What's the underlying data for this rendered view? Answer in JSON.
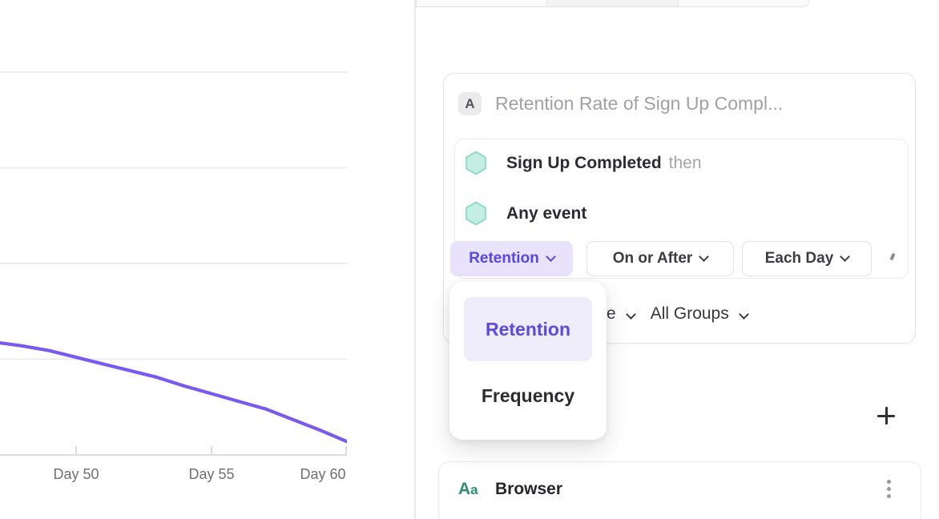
{
  "chart_data": {
    "type": "line",
    "title": "",
    "xlabel": "",
    "ylabel": "",
    "x_ticks": [
      {
        "day": 50,
        "label": "Day 50"
      },
      {
        "day": 55,
        "label": "Day 55"
      },
      {
        "day": 60,
        "label": "Day 60"
      }
    ],
    "xlim": [
      47.2,
      60
    ],
    "ylim": [
      0,
      47.5
    ],
    "gridlines_pct": [
      10,
      20,
      30,
      40
    ],
    "grid": "horizontal-only, unlabeled",
    "legend": "none",
    "series": [
      {
        "name": "retention",
        "color": "#7a59f0",
        "points": [
          [
            47.2,
            11.7
          ],
          [
            48,
            11.4
          ],
          [
            49,
            10.9
          ],
          [
            50,
            10.2
          ],
          [
            51,
            9.5
          ],
          [
            52,
            8.8
          ],
          [
            53,
            8.1
          ],
          [
            54,
            7.2
          ],
          [
            55,
            6.4
          ],
          [
            56,
            5.6
          ],
          [
            57,
            4.8
          ],
          [
            58,
            3.7
          ],
          [
            59,
            2.6
          ],
          [
            60,
            1.4
          ]
        ]
      }
    ]
  },
  "query_card": {
    "badge": "A",
    "title_placeholder": "Retention Rate of Sign Up Compl...",
    "events": [
      {
        "name": "Sign Up Completed",
        "suffix": "then"
      },
      {
        "name": "Any event",
        "suffix": ""
      }
    ],
    "measure_dropdown": "Retention",
    "window_dropdown": "On or After",
    "interval_dropdown": "Each Day",
    "footer": {
      "obscured_fragment": "e",
      "groups_dropdown": "All Groups"
    }
  },
  "dropdown_menu": {
    "items": [
      {
        "label": "Retention",
        "selected": true
      },
      {
        "label": "Frequency",
        "selected": false
      }
    ]
  },
  "breakdown_card": {
    "icon_text_big": "A",
    "icon_text_small": "a",
    "label": "Browser"
  },
  "colors": {
    "accent": "#5746e0",
    "accent_soft_bg": "#e8e3fb",
    "menu_highlight_bg": "#efecfc",
    "line": "#7a59f0",
    "gridline": "#ececec",
    "axis": "#dcdcdc",
    "hexagon_fill": "#c3eee1",
    "hexagon_border": "#82d8c2",
    "property_green": "#2e8f6e"
  },
  "icons": {
    "event": "hexagon-icon",
    "dropdown": "chevron-down-icon",
    "add": "plus-icon",
    "more": "kebab-menu-icon"
  }
}
